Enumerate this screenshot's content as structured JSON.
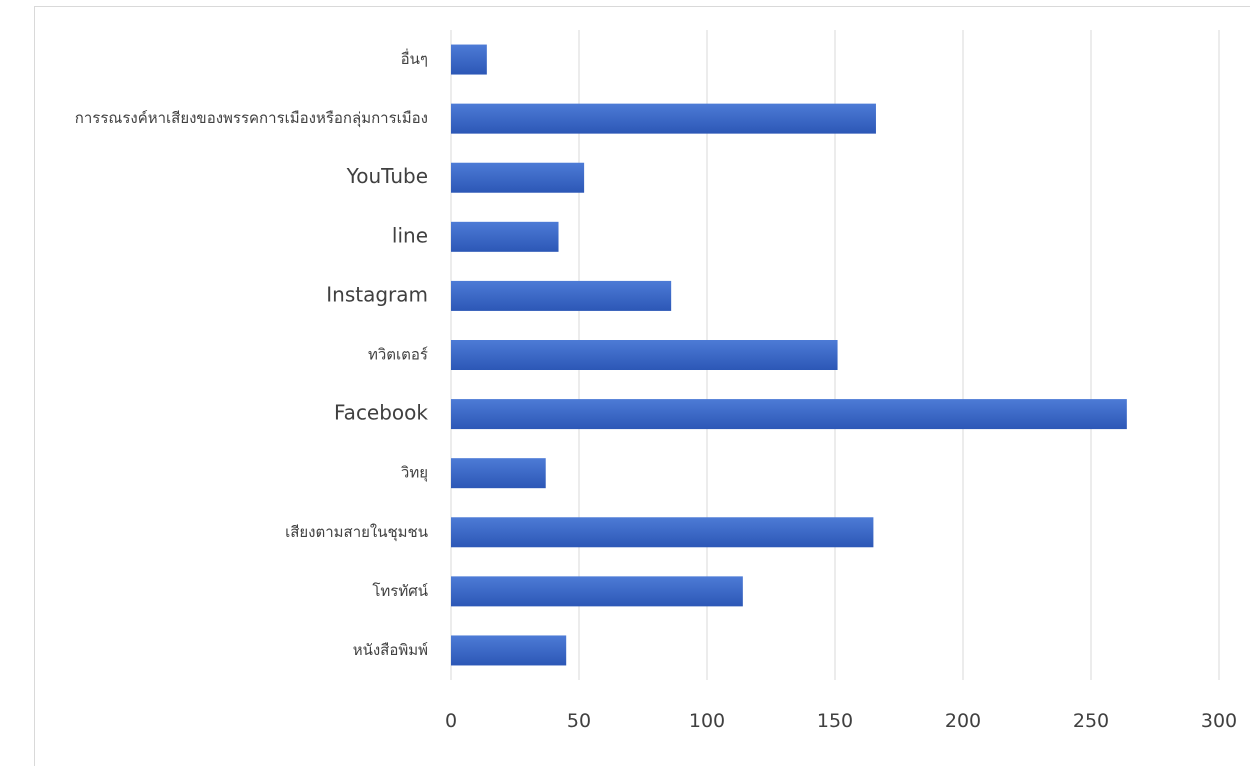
{
  "chart_data": {
    "type": "bar",
    "orientation": "horizontal",
    "title": "",
    "xlabel": "",
    "ylabel": "",
    "categories": [
      "อื่นๆ",
      "การรณรงค์หาเสียงของพรรคการเมืองหรือกลุ่มการเมือง",
      "YouTube",
      "line",
      "Instagram",
      "ทวิตเตอร์",
      "Facebook",
      "วิทยุ",
      "เสียงตามสายในชุมชน",
      "โทรทัศน์",
      "หนังสือพิมพ์"
    ],
    "values": [
      14,
      166,
      52,
      42,
      86,
      151,
      264,
      37,
      165,
      114,
      45
    ],
    "xlim": [
      0,
      300
    ],
    "xticks": [
      "0",
      "50",
      "100",
      "150",
      "200",
      "250",
      "300"
    ],
    "grid": true,
    "legend": "none",
    "bar_color": "#3a67c8",
    "bar_color_top": "#4d7bd6",
    "bar_color_bottom": "#2c57b6",
    "grid_color": "#d9d9d9",
    "text_color": "#404040"
  }
}
